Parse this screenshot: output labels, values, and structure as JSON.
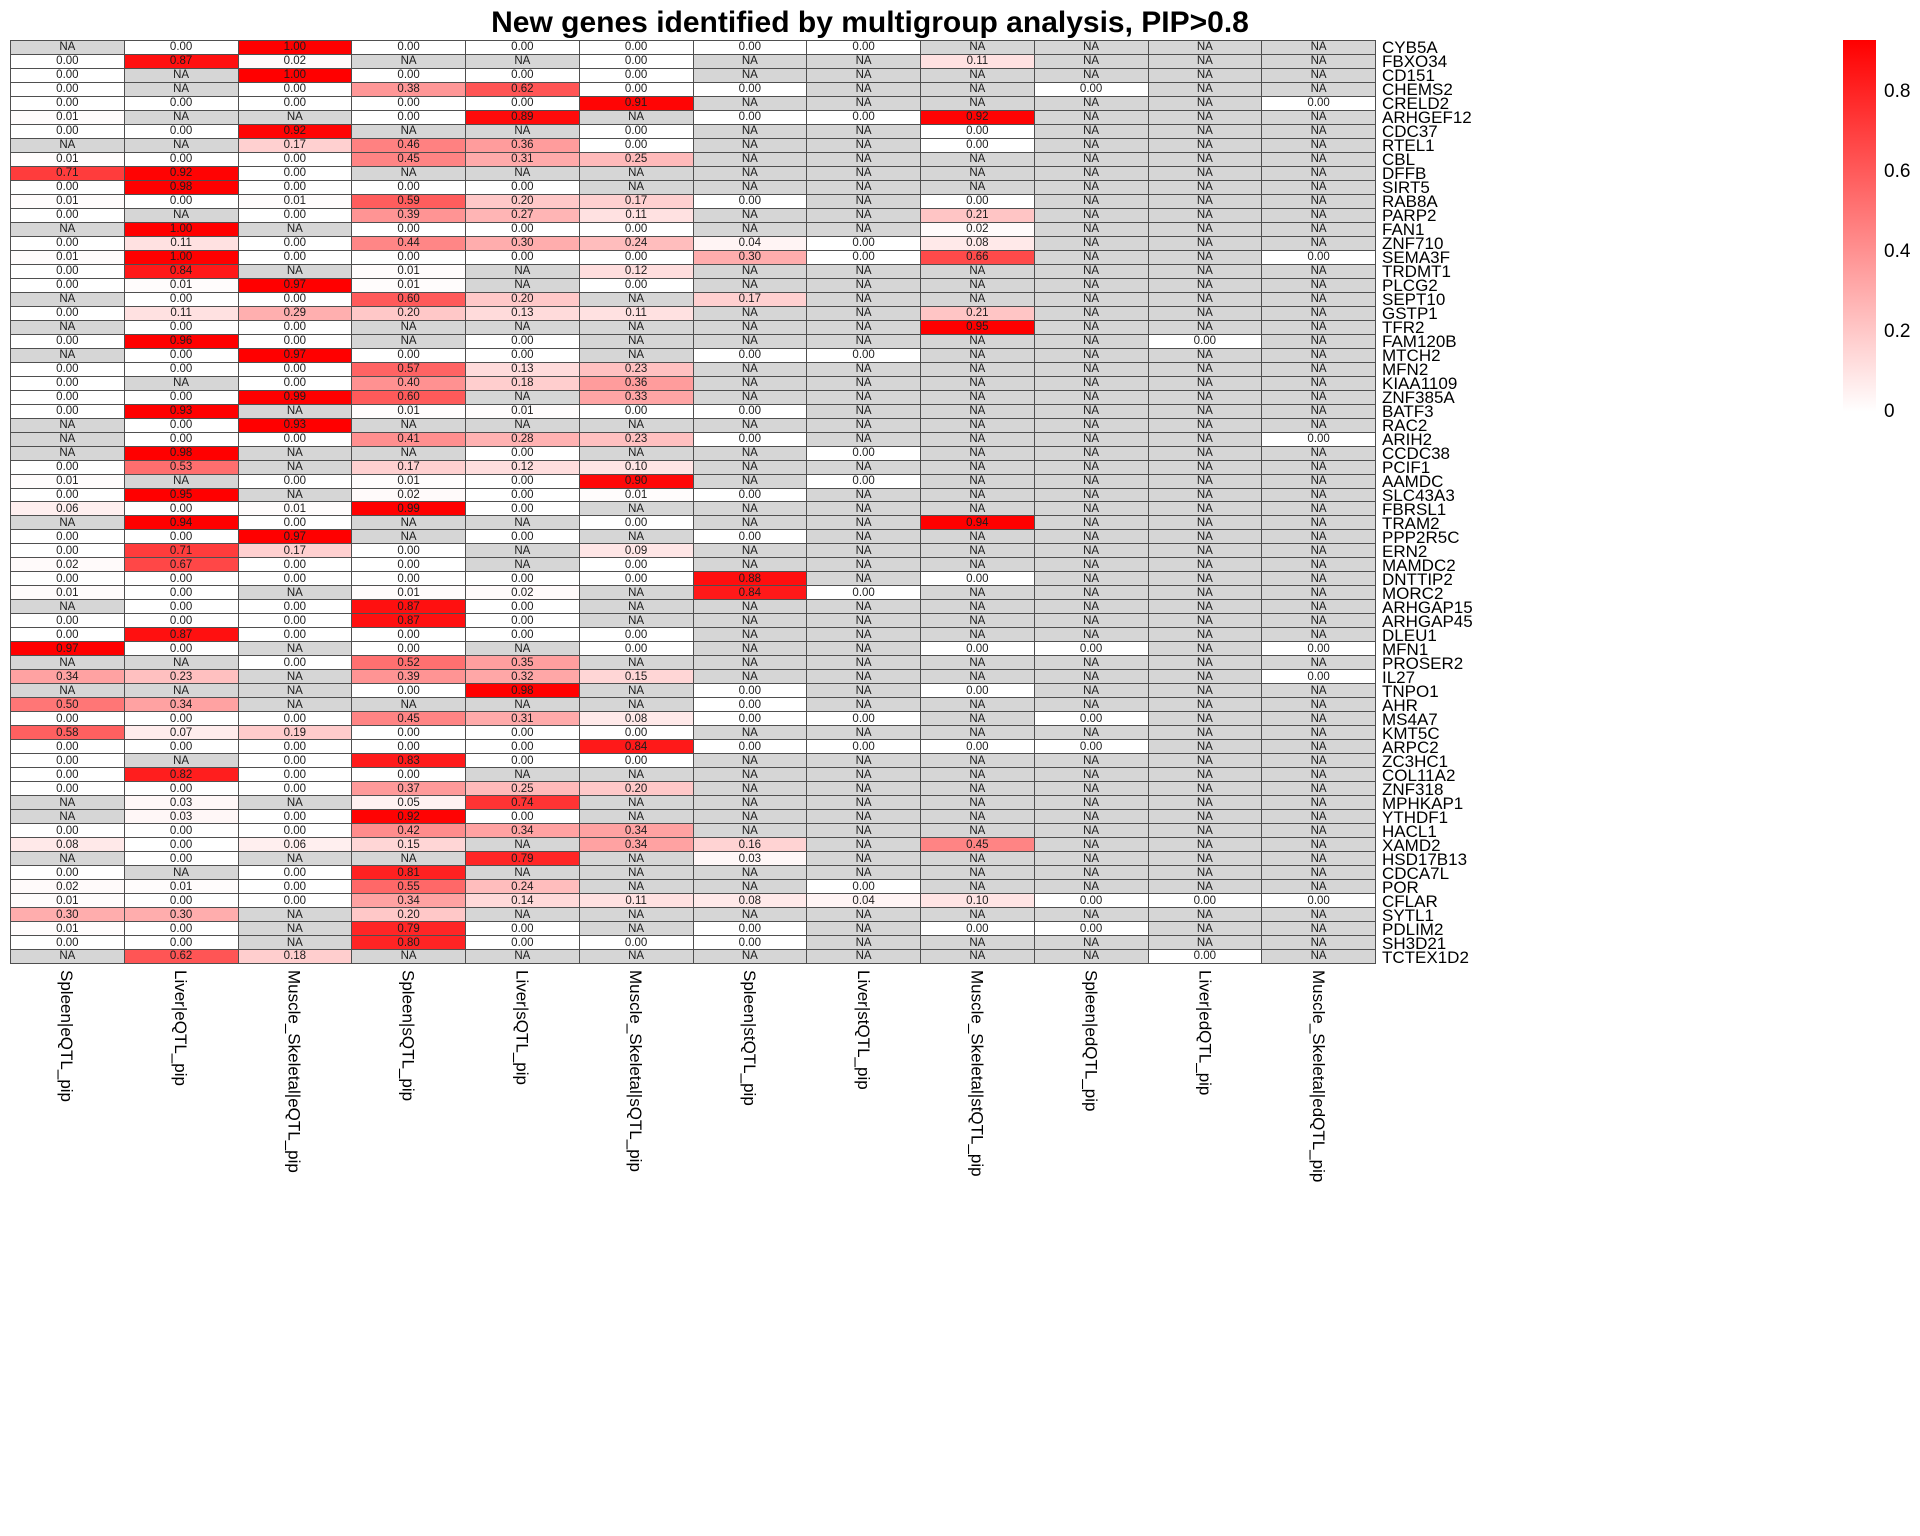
{
  "title": "New genes identified by multigroup analysis, PIP>0.8",
  "legend": {
    "tick_labels": [
      "0.8",
      "0.6",
      "0.4",
      "0.2",
      "0"
    ],
    "tick_values": [
      0.8,
      0.6,
      0.4,
      0.2,
      0
    ],
    "high_color": "#ff0000",
    "low_color": "#ffffff"
  },
  "chart_data": {
    "type": "heatmap",
    "title": "New genes identified by multigroup analysis, PIP>0.8",
    "na_color": "#d6d6d6",
    "low_color": "#ffffff",
    "high_color": "#ff0000",
    "scale_max": 0.93,
    "legend_position": "right",
    "columns": [
      "Spleen|eQTL_pip",
      "Liver|eQTL_pip",
      "Muscle_Skeletal|eQTL_pip",
      "Spleen|sQTL_pip",
      "Liver|sQTL_pip",
      "Muscle_Skeletal|sQTL_pip",
      "Spleen|stQTL_pip",
      "Liver|stQTL_pip",
      "Muscle_Skeletal|stQTL_pip",
      "Spleen|edQTL_pip",
      "Liver|edQTL_pip",
      "Muscle_Skeletal|edQTL_pip"
    ],
    "rows": [
      "CYB5A",
      "FBXO34",
      "CD151",
      "CHEMS2",
      "CRELD2",
      "ARHGEF12",
      "CDC37",
      "RTEL1",
      "CBL",
      "DFFB",
      "SIRT5",
      "RAB8A",
      "PARP2",
      "FAN1",
      "ZNF710",
      "SEMA3F",
      "TRDMT1",
      "PLCG2",
      "SEPT10",
      "GSTP1",
      "TFR2",
      "FAM120B",
      "MTCH2",
      "MFN2",
      "KIAA1109",
      "ZNF385A",
      "BATF3",
      "RAC2",
      "ARIH2",
      "CCDC38",
      "PCIF1",
      "AAMDC",
      "SLC43A3",
      "FBRSL1",
      "TRAM2",
      "PPP2R5C",
      "ERN2",
      "MAMDC2",
      "DNTTIP2",
      "MORC2",
      "ARHGAP15",
      "ARHGAP45",
      "DLEU1",
      "MFN1",
      "PROSER2",
      "IL27",
      "TNPO1",
      "AHR",
      "MS4A7",
      "KMT5C",
      "ARPC2",
      "ZC3HC1",
      "COL11A2",
      "ZNF318",
      "MPHKAP1",
      "YTHDF1",
      "HACL1",
      "XAMD2",
      "HSD17B13",
      "CDCA7L",
      "POR",
      "CFLAR",
      "SYTL1",
      "PDLIM2",
      "SH3D21",
      "TCTEX1D2"
    ],
    "values": [
      [
        "NA",
        "0.00",
        "1.00",
        "0.00",
        "0.00",
        "0.00",
        "0.00",
        "0.00",
        "NA",
        "NA",
        "NA",
        "NA"
      ],
      [
        "0.00",
        "0.87",
        "0.02",
        "NA",
        "NA",
        "0.00",
        "NA",
        "NA",
        "0.11",
        "NA",
        "NA",
        "NA"
      ],
      [
        "0.00",
        "NA",
        "1.00",
        "0.00",
        "0.00",
        "0.00",
        "NA",
        "NA",
        "NA",
        "NA",
        "NA",
        "NA"
      ],
      [
        "0.00",
        "NA",
        "0.00",
        "0.38",
        "0.62",
        "0.00",
        "0.00",
        "NA",
        "NA",
        "0.00",
        "NA",
        "NA"
      ],
      [
        "0.00",
        "0.00",
        "0.00",
        "0.00",
        "0.00",
        "0.91",
        "NA",
        "NA",
        "NA",
        "NA",
        "NA",
        "0.00"
      ],
      [
        "0.01",
        "NA",
        "NA",
        "0.00",
        "0.89",
        "NA",
        "0.00",
        "0.00",
        "0.92",
        "NA",
        "NA",
        "NA"
      ],
      [
        "0.00",
        "0.00",
        "0.92",
        "NA",
        "NA",
        "0.00",
        "NA",
        "NA",
        "0.00",
        "NA",
        "NA",
        "NA"
      ],
      [
        "NA",
        "NA",
        "0.17",
        "0.46",
        "0.36",
        "0.00",
        "NA",
        "NA",
        "0.00",
        "NA",
        "NA",
        "NA"
      ],
      [
        "0.01",
        "0.00",
        "0.00",
        "0.45",
        "0.31",
        "0.25",
        "NA",
        "NA",
        "NA",
        "NA",
        "NA",
        "NA"
      ],
      [
        "0.71",
        "0.92",
        "0.00",
        "NA",
        "NA",
        "NA",
        "NA",
        "NA",
        "NA",
        "NA",
        "NA",
        "NA"
      ],
      [
        "0.00",
        "0.98",
        "0.00",
        "0.00",
        "0.00",
        "NA",
        "NA",
        "NA",
        "NA",
        "NA",
        "NA",
        "NA"
      ],
      [
        "0.01",
        "0.00",
        "0.01",
        "0.59",
        "0.20",
        "0.17",
        "0.00",
        "NA",
        "0.00",
        "NA",
        "NA",
        "NA"
      ],
      [
        "0.00",
        "NA",
        "0.00",
        "0.39",
        "0.27",
        "0.11",
        "NA",
        "NA",
        "0.21",
        "NA",
        "NA",
        "NA"
      ],
      [
        "NA",
        "1.00",
        "NA",
        "0.00",
        "0.00",
        "0.00",
        "NA",
        "NA",
        "0.02",
        "NA",
        "NA",
        "NA"
      ],
      [
        "0.00",
        "0.11",
        "0.00",
        "0.44",
        "0.30",
        "0.24",
        "0.04",
        "0.00",
        "0.08",
        "NA",
        "NA",
        "NA"
      ],
      [
        "0.01",
        "1.00",
        "0.00",
        "0.00",
        "0.00",
        "0.00",
        "0.30",
        "0.00",
        "0.66",
        "NA",
        "NA",
        "0.00"
      ],
      [
        "0.00",
        "0.84",
        "NA",
        "0.01",
        "NA",
        "0.12",
        "NA",
        "NA",
        "NA",
        "NA",
        "NA",
        "NA"
      ],
      [
        "0.00",
        "0.01",
        "0.97",
        "0.01",
        "NA",
        "0.00",
        "NA",
        "NA",
        "NA",
        "NA",
        "NA",
        "NA"
      ],
      [
        "NA",
        "0.00",
        "0.00",
        "0.60",
        "0.20",
        "NA",
        "0.17",
        "NA",
        "NA",
        "NA",
        "NA",
        "NA"
      ],
      [
        "0.00",
        "0.11",
        "0.29",
        "0.20",
        "0.13",
        "0.11",
        "NA",
        "NA",
        "0.21",
        "NA",
        "NA",
        "NA"
      ],
      [
        "NA",
        "0.00",
        "0.00",
        "NA",
        "NA",
        "NA",
        "NA",
        "NA",
        "0.95",
        "NA",
        "NA",
        "NA"
      ],
      [
        "0.00",
        "0.96",
        "0.00",
        "NA",
        "0.00",
        "NA",
        "NA",
        "NA",
        "NA",
        "NA",
        "0.00",
        "NA"
      ],
      [
        "NA",
        "0.00",
        "0.97",
        "0.00",
        "0.00",
        "NA",
        "0.00",
        "0.00",
        "NA",
        "NA",
        "NA",
        "NA"
      ],
      [
        "0.00",
        "0.00",
        "0.00",
        "0.57",
        "0.13",
        "0.23",
        "NA",
        "NA",
        "NA",
        "NA",
        "NA",
        "NA"
      ],
      [
        "0.00",
        "NA",
        "0.00",
        "0.40",
        "0.18",
        "0.36",
        "NA",
        "NA",
        "NA",
        "NA",
        "NA",
        "NA"
      ],
      [
        "0.00",
        "0.00",
        "0.99",
        "0.60",
        "NA",
        "0.33",
        "NA",
        "NA",
        "NA",
        "NA",
        "NA",
        "NA"
      ],
      [
        "0.00",
        "0.93",
        "NA",
        "0.01",
        "0.01",
        "0.00",
        "0.00",
        "NA",
        "NA",
        "NA",
        "NA",
        "NA"
      ],
      [
        "NA",
        "0.00",
        "0.93",
        "NA",
        "NA",
        "NA",
        "NA",
        "NA",
        "NA",
        "NA",
        "NA",
        "NA"
      ],
      [
        "NA",
        "0.00",
        "0.00",
        "0.41",
        "0.28",
        "0.23",
        "0.00",
        "NA",
        "NA",
        "NA",
        "NA",
        "0.00"
      ],
      [
        "NA",
        "0.98",
        "NA",
        "NA",
        "0.00",
        "NA",
        "NA",
        "0.00",
        "NA",
        "NA",
        "NA",
        "NA"
      ],
      [
        "0.00",
        "0.53",
        "NA",
        "0.17",
        "0.12",
        "0.10",
        "NA",
        "NA",
        "NA",
        "NA",
        "NA",
        "NA"
      ],
      [
        "0.01",
        "NA",
        "0.00",
        "0.01",
        "0.00",
        "0.90",
        "NA",
        "0.00",
        "NA",
        "NA",
        "NA",
        "NA"
      ],
      [
        "0.00",
        "0.95",
        "NA",
        "0.02",
        "0.00",
        "0.01",
        "0.00",
        "NA",
        "NA",
        "NA",
        "NA",
        "NA"
      ],
      [
        "0.06",
        "0.00",
        "0.01",
        "0.99",
        "0.00",
        "NA",
        "NA",
        "NA",
        "NA",
        "NA",
        "NA",
        "NA"
      ],
      [
        "NA",
        "0.94",
        "0.00",
        "NA",
        "NA",
        "0.00",
        "NA",
        "NA",
        "0.94",
        "NA",
        "NA",
        "NA"
      ],
      [
        "0.00",
        "0.00",
        "0.97",
        "NA",
        "0.00",
        "NA",
        "0.00",
        "NA",
        "NA",
        "NA",
        "NA",
        "NA"
      ],
      [
        "0.00",
        "0.71",
        "0.17",
        "0.00",
        "NA",
        "0.09",
        "NA",
        "NA",
        "NA",
        "NA",
        "NA",
        "NA"
      ],
      [
        "0.02",
        "0.67",
        "0.00",
        "0.00",
        "NA",
        "0.00",
        "NA",
        "NA",
        "NA",
        "NA",
        "NA",
        "NA"
      ],
      [
        "0.00",
        "0.00",
        "0.00",
        "0.00",
        "0.00",
        "0.00",
        "0.88",
        "NA",
        "0.00",
        "NA",
        "NA",
        "NA"
      ],
      [
        "0.01",
        "0.00",
        "NA",
        "0.01",
        "0.02",
        "NA",
        "0.84",
        "0.00",
        "NA",
        "NA",
        "NA",
        "NA"
      ],
      [
        "NA",
        "0.00",
        "0.00",
        "0.87",
        "0.00",
        "NA",
        "NA",
        "NA",
        "NA",
        "NA",
        "NA",
        "NA"
      ],
      [
        "0.00",
        "0.00",
        "0.00",
        "0.87",
        "0.00",
        "NA",
        "NA",
        "NA",
        "NA",
        "NA",
        "NA",
        "NA"
      ],
      [
        "0.00",
        "0.87",
        "0.00",
        "0.00",
        "0.00",
        "0.00",
        "NA",
        "NA",
        "NA",
        "NA",
        "NA",
        "NA"
      ],
      [
        "0.97",
        "0.00",
        "NA",
        "0.00",
        "NA",
        "0.00",
        "NA",
        "NA",
        "0.00",
        "0.00",
        "NA",
        "0.00"
      ],
      [
        "NA",
        "NA",
        "0.00",
        "0.52",
        "0.35",
        "NA",
        "NA",
        "NA",
        "NA",
        "NA",
        "NA",
        "NA"
      ],
      [
        "0.34",
        "0.23",
        "NA",
        "0.39",
        "0.32",
        "0.15",
        "NA",
        "NA",
        "NA",
        "NA",
        "NA",
        "0.00"
      ],
      [
        "NA",
        "NA",
        "NA",
        "0.00",
        "0.98",
        "NA",
        "0.00",
        "NA",
        "0.00",
        "NA",
        "NA",
        "NA"
      ],
      [
        "0.50",
        "0.34",
        "NA",
        "NA",
        "NA",
        "NA",
        "0.00",
        "NA",
        "NA",
        "NA",
        "NA",
        "NA"
      ],
      [
        "0.00",
        "0.00",
        "0.00",
        "0.45",
        "0.31",
        "0.08",
        "0.00",
        "0.00",
        "NA",
        "0.00",
        "NA",
        "NA"
      ],
      [
        "0.58",
        "0.07",
        "0.19",
        "0.00",
        "0.00",
        "0.00",
        "NA",
        "NA",
        "NA",
        "NA",
        "NA",
        "NA"
      ],
      [
        "0.00",
        "0.00",
        "0.00",
        "0.00",
        "0.00",
        "0.84",
        "0.00",
        "0.00",
        "0.00",
        "0.00",
        "NA",
        "NA"
      ],
      [
        "0.00",
        "NA",
        "0.00",
        "0.83",
        "0.00",
        "0.00",
        "NA",
        "NA",
        "NA",
        "NA",
        "NA",
        "NA"
      ],
      [
        "0.00",
        "0.82",
        "0.00",
        "0.00",
        "NA",
        "NA",
        "NA",
        "NA",
        "NA",
        "NA",
        "NA",
        "NA"
      ],
      [
        "0.00",
        "0.00",
        "0.00",
        "0.37",
        "0.25",
        "0.20",
        "NA",
        "NA",
        "NA",
        "NA",
        "NA",
        "NA"
      ],
      [
        "NA",
        "0.03",
        "NA",
        "0.05",
        "0.74",
        "NA",
        "NA",
        "NA",
        "NA",
        "NA",
        "NA",
        "NA"
      ],
      [
        "NA",
        "0.03",
        "0.00",
        "0.92",
        "0.00",
        "NA",
        "NA",
        "NA",
        "NA",
        "NA",
        "NA",
        "NA"
      ],
      [
        "0.00",
        "0.00",
        "0.00",
        "0.42",
        "0.34",
        "0.34",
        "NA",
        "NA",
        "NA",
        "NA",
        "NA",
        "NA"
      ],
      [
        "0.08",
        "0.00",
        "0.06",
        "0.15",
        "NA",
        "0.34",
        "0.16",
        "NA",
        "0.45",
        "NA",
        "NA",
        "NA"
      ],
      [
        "NA",
        "0.00",
        "NA",
        "NA",
        "0.79",
        "NA",
        "0.03",
        "NA",
        "NA",
        "NA",
        "NA",
        "NA"
      ],
      [
        "0.00",
        "NA",
        "0.00",
        "0.81",
        "NA",
        "NA",
        "NA",
        "NA",
        "NA",
        "NA",
        "NA",
        "NA"
      ],
      [
        "0.02",
        "0.01",
        "0.00",
        "0.55",
        "0.24",
        "NA",
        "NA",
        "0.00",
        "NA",
        "NA",
        "NA",
        "NA"
      ],
      [
        "0.01",
        "0.00",
        "0.00",
        "0.34",
        "0.14",
        "0.11",
        "0.08",
        "0.04",
        "0.10",
        "0.00",
        "0.00",
        "0.00"
      ],
      [
        "0.30",
        "0.30",
        "NA",
        "0.20",
        "NA",
        "NA",
        "NA",
        "NA",
        "NA",
        "NA",
        "NA",
        "NA"
      ],
      [
        "0.01",
        "0.00",
        "NA",
        "0.79",
        "0.00",
        "NA",
        "0.00",
        "NA",
        "0.00",
        "0.00",
        "NA",
        "NA"
      ],
      [
        "0.00",
        "0.00",
        "NA",
        "0.80",
        "0.00",
        "0.00",
        "0.00",
        "NA",
        "NA",
        "NA",
        "NA",
        "NA"
      ],
      [
        "NA",
        "0.62",
        "0.18",
        "NA",
        "NA",
        "NA",
        "NA",
        "NA",
        "NA",
        "NA",
        "0.00",
        "NA"
      ]
    ]
  }
}
